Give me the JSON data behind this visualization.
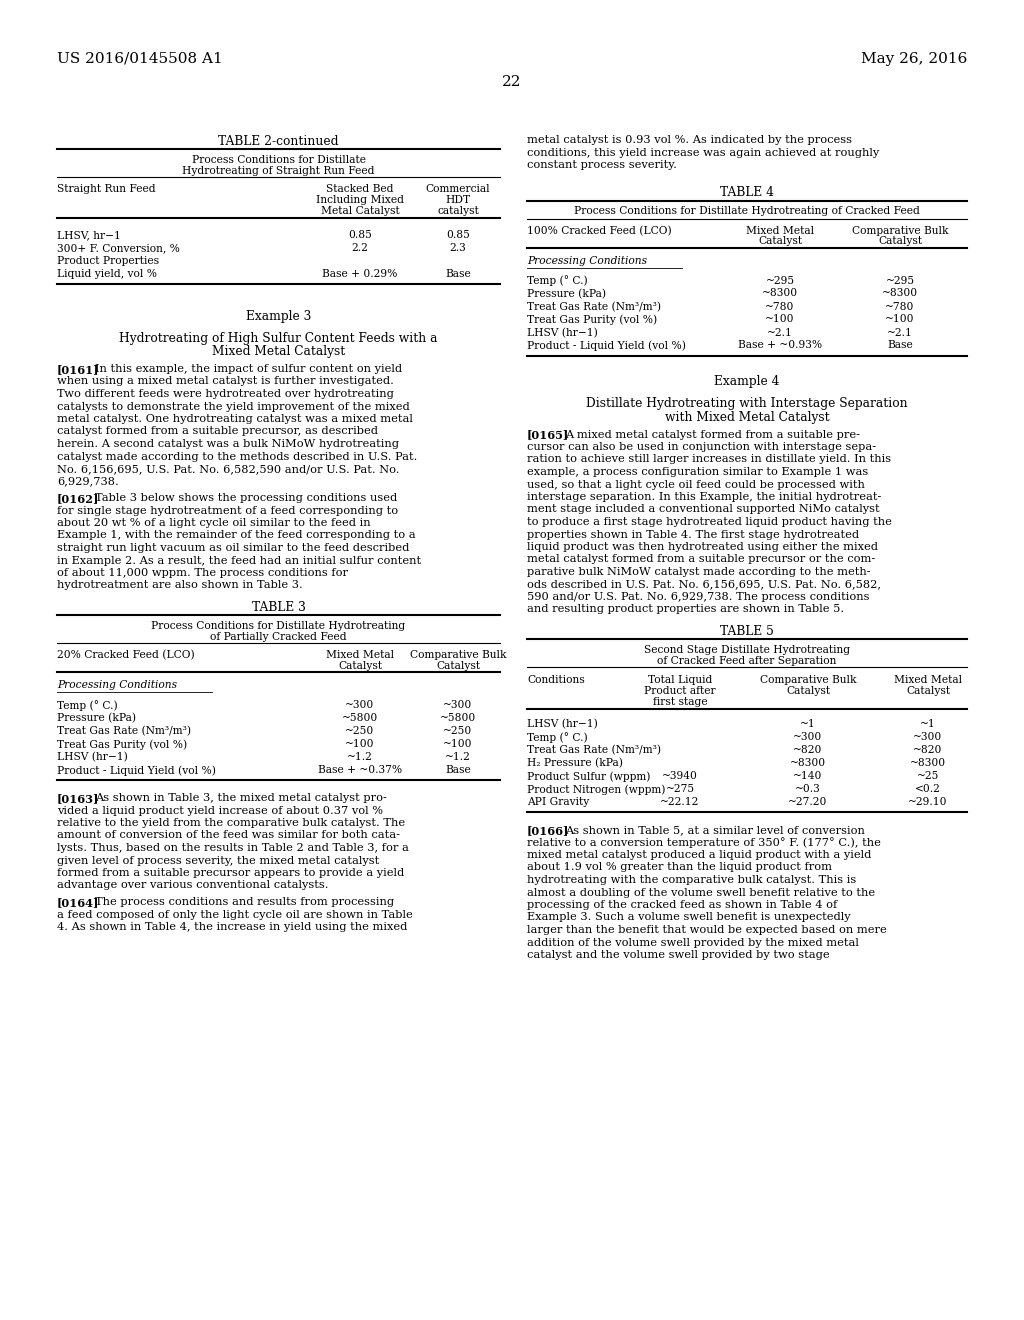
{
  "background_color": "#ffffff",
  "header_left": "US 2016/0145508 A1",
  "header_right": "May 26, 2016",
  "page_number": "22",
  "table2_continued_title": "TABLE 2-continued",
  "table2_subtitle1": "Process Conditions for Distillate",
  "table2_subtitle2": "Hydrotreating of Straight Run Feed",
  "table2_col1": "Straight Run Feed",
  "table2_col2a": "Stacked Bed",
  "table2_col2b": "Including Mixed",
  "table2_col2c": "Metal Catalyst",
  "table2_col3a": "Commercial",
  "table2_col3b": "HDT",
  "table2_col3c": "catalyst",
  "table2_rows": [
    [
      "LHSV, hr−1",
      "0.85",
      "0.85"
    ],
    [
      "300+ F. Conversion, %",
      "2.2",
      "2.3"
    ],
    [
      "Product Properties",
      "",
      ""
    ],
    [
      "Liquid yield, vol %",
      "Base + 0.29%",
      "Base"
    ]
  ],
  "example3_title": "Example 3",
  "example3_sub1": "Hydrotreating of High Sulfur Content Feeds with a",
  "example3_sub2": "Mixed Metal Catalyst",
  "para161_label": "[0161]",
  "para161_lines": [
    "In this example, the impact of sulfur content on yield",
    "when using a mixed metal catalyst is further investigated.",
    "Two different feeds were hydrotreated over hydrotreating",
    "catalysts to demonstrate the yield improvement of the mixed",
    "metal catalyst. One hydrotreating catalyst was a mixed metal",
    "catalyst formed from a suitable precursor, as described",
    "herein. A second catalyst was a bulk NiMoW hydrotreating",
    "catalyst made according to the methods described in U.S. Pat.",
    "No. 6,156,695, U.S. Pat. No. 6,582,590 and/or U.S. Pat. No.",
    "6,929,738."
  ],
  "para162_label": "[0162]",
  "para162_lines": [
    "Table 3 below shows the processing conditions used",
    "for single stage hydrotreatment of a feed corresponding to",
    "about 20 wt % of a light cycle oil similar to the feed in",
    "Example 1, with the remainder of the feed corresponding to a",
    "straight run light vacuum as oil similar to the feed described",
    "in Example 2. As a result, the feed had an initial sulfur content",
    "of about 11,000 wppm. The process conditions for",
    "hydrotreatment are also shown in Table 3."
  ],
  "table3_title": "TABLE 3",
  "table3_sub1": "Process Conditions for Distillate Hydrotreating",
  "table3_sub2": "of Partially Cracked Feed",
  "table3_col1": "20% Cracked Feed (LCO)",
  "table3_col2a": "Mixed Metal",
  "table3_col2b": "Catalyst",
  "table3_col3a": "Comparative Bulk",
  "table3_col3b": "Catalyst",
  "table3_section": "Processing Conditions",
  "table3_rows": [
    [
      "Temp (° C.)",
      "~300",
      "~300"
    ],
    [
      "Pressure (kPa)",
      "~5800",
      "~5800"
    ],
    [
      "Treat Gas Rate (Nm³/m³)",
      "~250",
      "~250"
    ],
    [
      "Treat Gas Purity (vol %)",
      "~100",
      "~100"
    ],
    [
      "LHSV (hr−1)",
      "~1.2",
      "~1.2"
    ],
    [
      "Product - Liquid Yield (vol %)",
      "Base + ~0.37%",
      "Base"
    ]
  ],
  "para163_label": "[0163]",
  "para163_lines": [
    "As shown in Table 3, the mixed metal catalyst pro-",
    "vided a liquid product yield increase of about 0.37 vol %",
    "relative to the yield from the comparative bulk catalyst. The",
    "amount of conversion of the feed was similar for both cata-",
    "lysts. Thus, based on the results in Table 2 and Table 3, for a",
    "given level of process severity, the mixed metal catalyst",
    "formed from a suitable precursor appears to provide a yield",
    "advantage over various conventional catalysts."
  ],
  "para164_label": "[0164]",
  "para164_lines": [
    "The process conditions and results from processing",
    "a feed composed of only the light cycle oil are shown in Table",
    "4. As shown in Table 4, the increase in yield using the mixed"
  ],
  "right_top_lines": [
    "metal catalyst is 0.93 vol %. As indicated by the process",
    "conditions, this yield increase was again achieved at roughly",
    "constant process severity."
  ],
  "table4_title": "TABLE 4",
  "table4_sub1": "Process Conditions for Distillate Hydrotreating of Cracked Feed",
  "table4_col1": "100% Cracked Feed (LCO)",
  "table4_col2a": "Mixed Metal",
  "table4_col2b": "Catalyst",
  "table4_col3a": "Comparative Bulk",
  "table4_col3b": "Catalyst",
  "table4_section": "Processing Conditions",
  "table4_rows": [
    [
      "Temp (° C.)",
      "~295",
      "~295"
    ],
    [
      "Pressure (kPa)",
      "~8300",
      "~8300"
    ],
    [
      "Treat Gas Rate (Nm³/m³)",
      "~780",
      "~780"
    ],
    [
      "Treat Gas Purity (vol %)",
      "~100",
      "~100"
    ],
    [
      "LHSV (hr−1)",
      "~2.1",
      "~2.1"
    ],
    [
      "Product - Liquid Yield (vol %)",
      "Base + ~0.93%",
      "Base"
    ]
  ],
  "example4_title": "Example 4",
  "example4_sub1": "Distillate Hydrotreating with Interstage Separation",
  "example4_sub2": "with Mixed Metal Catalyst",
  "para165_label": "[0165]",
  "para165_lines": [
    "A mixed metal catalyst formed from a suitable pre-",
    "cursor can also be used in conjunction with interstage sepa-",
    "ration to achieve still larger increases in distillate yield. In this",
    "example, a process configuration similar to Example 1 was",
    "used, so that a light cycle oil feed could be processed with",
    "interstage separation. In this Example, the initial hydrotreat-",
    "ment stage included a conventional supported NiMo catalyst",
    "to produce a first stage hydrotreated liquid product having the",
    "properties shown in Table 4. The first stage hydrotreated",
    "liquid product was then hydrotreated using either the mixed",
    "metal catalyst formed from a suitable precursor or the com-",
    "parative bulk NiMoW catalyst made according to the meth-",
    "ods described in U.S. Pat. No. 6,156,695, U.S. Pat. No. 6,582,",
    "590 and/or U.S. Pat. No. 6,929,738. The process conditions",
    "and resulting product properties are shown in Table 5."
  ],
  "table5_title": "TABLE 5",
  "table5_sub1": "Second Stage Distillate Hydrotreating",
  "table5_sub2": "of Cracked Feed after Separation",
  "table5_col1": "Conditions",
  "table5_col2a": "Total Liquid",
  "table5_col2b": "Product after",
  "table5_col2c": "first stage",
  "table5_col3a": "Comparative Bulk",
  "table5_col3b": "Catalyst",
  "table5_col4a": "Mixed Metal",
  "table5_col4b": "Catalyst",
  "table5_rows": [
    [
      "LHSV (hr−1)",
      "",
      "~1",
      "~1"
    ],
    [
      "Temp (° C.)",
      "",
      "~300",
      "~300"
    ],
    [
      "Treat Gas Rate (Nm³/m³)",
      "",
      "~820",
      "~820"
    ],
    [
      "H₂ Pressure (kPa)",
      "",
      "~8300",
      "~8300"
    ],
    [
      "Product Sulfur (wppm)",
      "~3940",
      "~140",
      "~25"
    ],
    [
      "Product Nitrogen (wppm)",
      "~275",
      "~0.3",
      "<0.2"
    ],
    [
      "API Gravity",
      "~22.12",
      "~27.20",
      "~29.10"
    ]
  ],
  "para166_label": "[0166]",
  "para166_lines": [
    "As shown in Table 5, at a similar level of conversion",
    "relative to a conversion temperature of 350° F. (177° C.), the",
    "mixed metal catalyst produced a liquid product with a yield",
    "about 1.9 vol % greater than the liquid product from",
    "hydrotreating with the comparative bulk catalyst. This is",
    "almost a doubling of the volume swell benefit relative to the",
    "processing of the cracked feed as shown in Table 4 of",
    "Example 3. Such a volume swell benefit is unexpectedly",
    "larger than the benefit that would be expected based on mere",
    "addition of the volume swell provided by the mixed metal",
    "catalyst and the volume swell provided by two stage"
  ]
}
